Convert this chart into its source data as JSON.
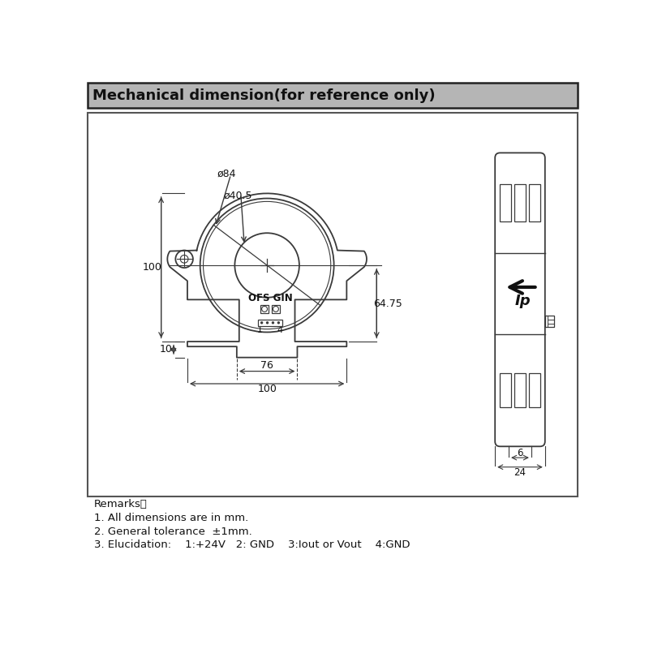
{
  "title": "Mechanical dimension(for reference only)",
  "title_bg": "#b5b5b5",
  "bg_color": "#ffffff",
  "line_color": "#3a3a3a",
  "remarks": [
    "Remarks：",
    "1. All dimensions are in mm.",
    "2. General tolerance  ±1mm.",
    "3. Elucidation:    1:+24V   2: GND    3:Iout or Vout    4:GND"
  ],
  "outer_diameter": 84,
  "inner_diameter": 40.5
}
